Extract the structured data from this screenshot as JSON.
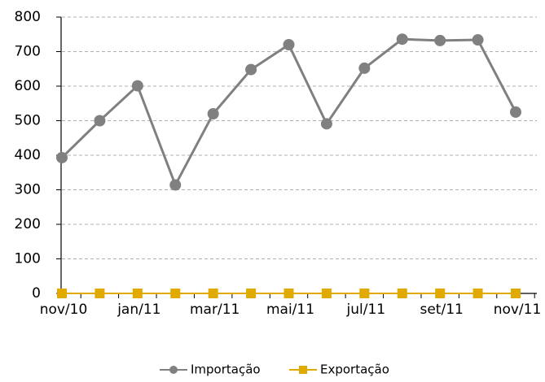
{
  "chart_data": {
    "type": "line",
    "categories": [
      "nov/10",
      null,
      "jan/11",
      null,
      "mar/11",
      null,
      "mai/11",
      null,
      "jul/11",
      null,
      "set/11",
      null,
      "nov/11"
    ],
    "series": [
      {
        "name": "Importação",
        "color": "#808080",
        "values": [
          393,
          500,
          601,
          314,
          520,
          648,
          720,
          491,
          652,
          736,
          732,
          734,
          525
        ]
      },
      {
        "name": "Exportação",
        "color": "#e0aa00",
        "values": [
          0,
          0,
          0,
          0,
          0,
          0,
          0,
          0,
          0,
          0,
          0,
          0,
          0
        ]
      }
    ],
    "ylim": [
      0,
      800
    ],
    "yticks": [
      0,
      100,
      200,
      300,
      400,
      500,
      600,
      700,
      800
    ],
    "grid": true,
    "legend": "bottom"
  }
}
